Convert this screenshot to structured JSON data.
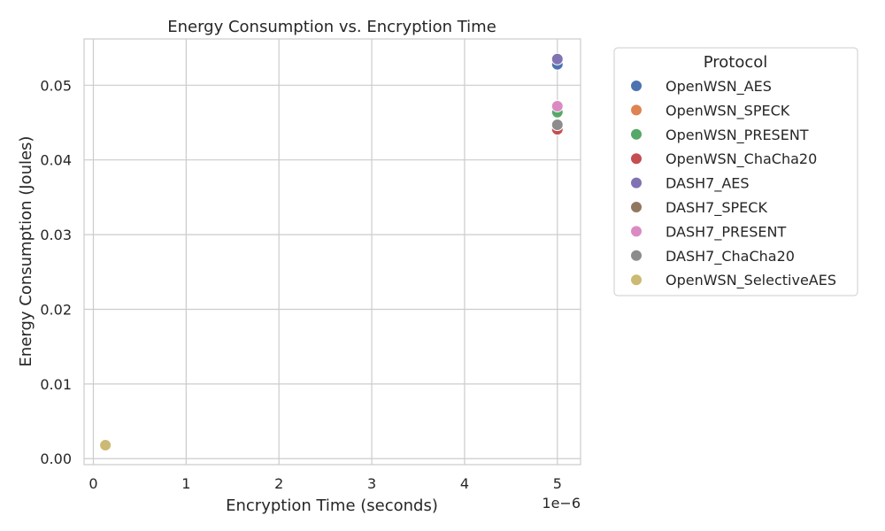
{
  "chart_data": {
    "type": "scatter",
    "title": "Energy Consumption vs. Encryption Time",
    "xlabel": "Encryption Time (seconds)",
    "ylabel": "Energy Consumption (Joules)",
    "x_offset_label": "1e−6",
    "x_scale_factor": 1e-06,
    "xlim": [
      -1e-07,
      5.25e-06
    ],
    "ylim": [
      -0.0008,
      0.0562
    ],
    "xticks": [
      0,
      1e-06,
      2e-06,
      3e-06,
      4e-06,
      5e-06
    ],
    "xtick_labels": [
      "0",
      "1",
      "2",
      "3",
      "4",
      "5"
    ],
    "yticks": [
      0,
      0.01,
      0.02,
      0.03,
      0.04,
      0.05
    ],
    "ytick_labels": [
      "0.00",
      "0.01",
      "0.02",
      "0.03",
      "0.04",
      "0.05"
    ],
    "grid": true,
    "legend": {
      "title": "Protocol",
      "placement": "outside-right"
    },
    "series": [
      {
        "name": "OpenWSN_AES",
        "color": "#4c72b0",
        "points": [
          {
            "x": 5e-06,
            "y": 0.0528
          }
        ]
      },
      {
        "name": "OpenWSN_SPECK",
        "color": "#dd8452",
        "points": [
          {
            "x": 5e-06,
            "y": 0.0445
          }
        ]
      },
      {
        "name": "OpenWSN_PRESENT",
        "color": "#55a868",
        "points": [
          {
            "x": 5e-06,
            "y": 0.0464
          }
        ]
      },
      {
        "name": "OpenWSN_ChaCha20",
        "color": "#c44e52",
        "points": [
          {
            "x": 5e-06,
            "y": 0.0441
          }
        ]
      },
      {
        "name": "DASH7_AES",
        "color": "#8172b3",
        "points": [
          {
            "x": 5e-06,
            "y": 0.0535
          }
        ]
      },
      {
        "name": "DASH7_SPECK",
        "color": "#937860",
        "points": [
          {
            "x": 5e-06,
            "y": 0.0447
          }
        ]
      },
      {
        "name": "DASH7_PRESENT",
        "color": "#da8bc3",
        "points": [
          {
            "x": 5e-06,
            "y": 0.0472
          }
        ]
      },
      {
        "name": "DASH7_ChaCha20",
        "color": "#8c8c8c",
        "points": [
          {
            "x": 5e-06,
            "y": 0.0447
          }
        ]
      },
      {
        "name": "OpenWSN_SelectiveAES",
        "color": "#ccb974",
        "points": [
          {
            "x": 1.3e-07,
            "y": 0.0018
          }
        ]
      }
    ]
  }
}
